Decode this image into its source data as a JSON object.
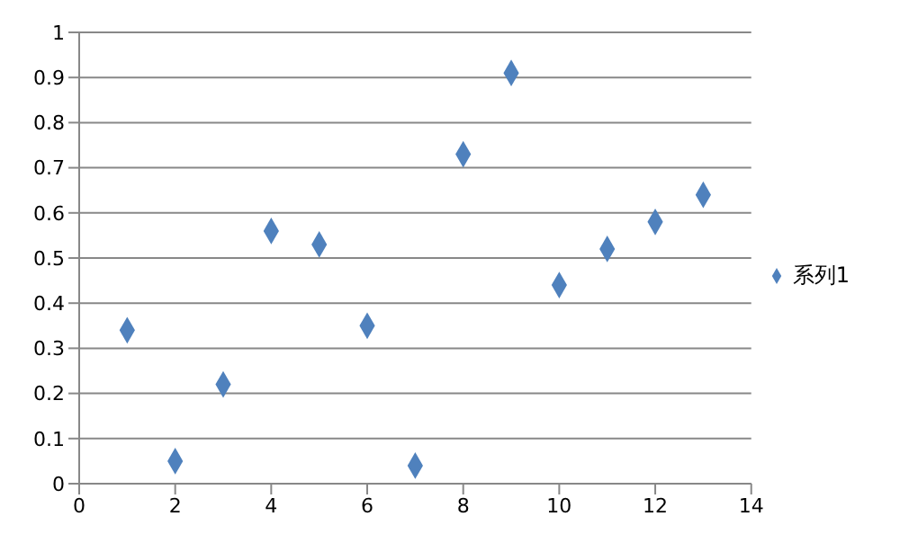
{
  "chart_data": {
    "type": "scatter",
    "x": [
      1,
      2,
      3,
      4,
      5,
      6,
      7,
      8,
      9,
      10,
      11,
      12,
      13
    ],
    "series": [
      {
        "name": "系列1",
        "color": "#4f81bd",
        "values": [
          0.34,
          0.05,
          0.22,
          0.56,
          0.53,
          0.35,
          0.04,
          0.73,
          0.91,
          0.44,
          0.52,
          0.58,
          0.64
        ]
      }
    ],
    "xlim": [
      0,
      14
    ],
    "xticks": [
      0,
      2,
      4,
      6,
      8,
      10,
      12,
      14
    ],
    "ylim": [
      0,
      1
    ],
    "yticks": [
      0,
      0.1,
      0.2,
      0.3,
      0.4,
      0.5,
      0.6,
      0.7,
      0.8,
      0.9,
      1
    ],
    "grid": "y",
    "legend": "right",
    "marker": "diamond"
  }
}
